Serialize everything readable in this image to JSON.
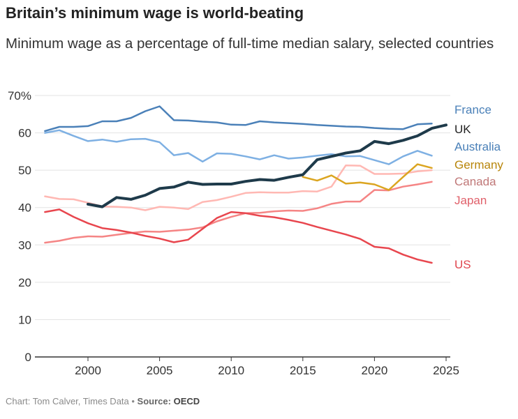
{
  "chart_data": {
    "type": "line",
    "title": "Britain’s minimum wage is world-beating",
    "subtitle": "Minimum wage as a percentage of full-time median salary, selected countries",
    "xlabel": "",
    "ylabel": "",
    "xlim": [
      1997,
      2025
    ],
    "ylim": [
      0,
      70
    ],
    "x_ticks": [
      "2000",
      "2005",
      "2010",
      "2015",
      "2020",
      "2025"
    ],
    "y_ticks": [
      "0",
      "10",
      "20",
      "30",
      "40",
      "50",
      "60",
      "70%"
    ],
    "grid": true,
    "legend": "right (direct labels)",
    "series": [
      {
        "name": "France",
        "color": "#4a80b8",
        "label_color": "#4a80b8",
        "width": 2.5,
        "start": 1997,
        "values": [
          60.5,
          61.6,
          61.6,
          61.8,
          63.1,
          63.1,
          64.0,
          65.8,
          67.1,
          63.4,
          63.3,
          63.0,
          62.8,
          62.2,
          62.1,
          63.1,
          62.8,
          62.6,
          62.4,
          62.1,
          61.9,
          61.7,
          61.6,
          61.3,
          61.1,
          61.0,
          62.3,
          62.5
        ]
      },
      {
        "name": "UK",
        "color": "#1e3a4a",
        "label_color": "#222222",
        "width": 4,
        "start": 2000,
        "values": [
          40.9,
          40.2,
          42.7,
          42.2,
          43.3,
          45.1,
          45.5,
          46.8,
          46.2,
          46.3,
          46.3,
          47.0,
          47.5,
          47.3,
          48.1,
          48.8,
          52.8,
          53.7,
          54.6,
          55.2,
          57.7,
          57.1,
          58.0,
          59.2,
          61.2,
          62.1
        ]
      },
      {
        "name": "Australia",
        "color": "#7eb0e3",
        "label_color": "#4a80b8",
        "width": 2.5,
        "start": 1997,
        "values": [
          60.0,
          60.7,
          59.2,
          57.8,
          58.2,
          57.6,
          58.3,
          58.4,
          57.5,
          54.0,
          54.6,
          52.3,
          54.5,
          54.4,
          53.7,
          52.9,
          54.0,
          53.1,
          53.4,
          53.9,
          54.3,
          53.7,
          53.8,
          52.7,
          51.6,
          53.7,
          55.2,
          53.9
        ]
      },
      {
        "name": "Germany",
        "color": "#dba520",
        "label_color": "#b8860b",
        "width": 2.5,
        "start": 2015,
        "values": [
          48.2,
          47.2,
          48.6,
          46.4,
          46.7,
          46.2,
          44.7,
          48.2,
          51.6,
          50.6
        ]
      },
      {
        "name": "Canada",
        "color": "#ffb8b3",
        "label_color": "#c07878",
        "width": 2.5,
        "start": 1997,
        "values": [
          43.0,
          42.3,
          42.2,
          41.3,
          40.3,
          40.2,
          40.0,
          39.3,
          40.2,
          40.0,
          39.6,
          41.5,
          42.0,
          42.9,
          43.9,
          44.1,
          44.0,
          44.0,
          44.4,
          44.3,
          45.6,
          51.3,
          51.2,
          49.0,
          49.0,
          49.1,
          49.7,
          50.0
        ]
      },
      {
        "name": "Japan",
        "color": "#f58585",
        "label_color": "#e0606a",
        "width": 2.5,
        "start": 1997,
        "values": [
          30.6,
          31.1,
          31.9,
          32.3,
          32.2,
          32.7,
          33.2,
          33.6,
          33.5,
          33.8,
          34.1,
          34.7,
          36.3,
          37.5,
          38.5,
          38.6,
          39.0,
          39.2,
          39.1,
          39.8,
          41.0,
          41.6,
          41.6,
          44.7,
          44.6,
          45.6,
          46.2,
          46.9
        ]
      },
      {
        "name": "US",
        "color": "#e8464e",
        "label_color": "#e0464e",
        "width": 2.5,
        "start": 1997,
        "values": [
          38.8,
          39.5,
          37.5,
          35.8,
          34.5,
          34.0,
          33.3,
          32.4,
          31.7,
          30.7,
          31.4,
          34.3,
          37.2,
          38.8,
          38.5,
          37.8,
          37.4,
          36.7,
          35.9,
          34.8,
          33.8,
          32.8,
          31.6,
          29.5,
          29.1,
          27.4,
          26.1,
          25.2
        ]
      }
    ]
  },
  "footer": {
    "chart_by": "Chart: Tom Calver, Times Data",
    "separator": " • ",
    "source_label": "Source:",
    "source": "OECD"
  }
}
